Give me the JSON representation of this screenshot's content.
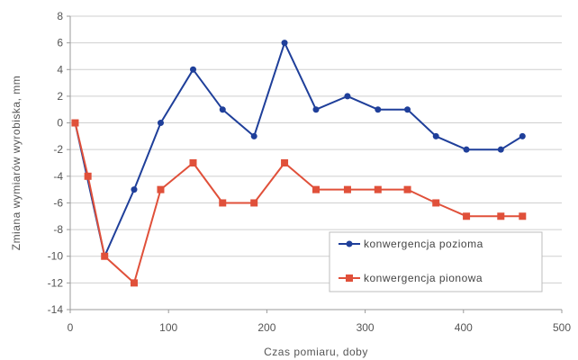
{
  "chart_data": {
    "type": "line",
    "title": "",
    "xlabel": "Czas pomiaru, doby",
    "ylabel": "Zmiana wymiarów wyrobiska, mm",
    "xlim": [
      0,
      500
    ],
    "ylim": [
      -14,
      8
    ],
    "xticks": [
      0,
      100,
      200,
      300,
      400,
      500
    ],
    "yticks": [
      -14,
      -12,
      -10,
      -8,
      -6,
      -4,
      -2,
      0,
      2,
      4,
      6,
      8
    ],
    "grid": true,
    "legend_position": "bottom-right",
    "series": [
      {
        "name": "konwergencja pozioma",
        "color": "#1f3f9a",
        "marker": "circle",
        "x": [
          5,
          35,
          65,
          92,
          125,
          155,
          187,
          218,
          250,
          282,
          313,
          343,
          372,
          403,
          438,
          460
        ],
        "y": [
          0,
          -10,
          -5,
          0,
          4,
          1,
          -1,
          6,
          1,
          2,
          1,
          1,
          -1,
          -2,
          -2,
          -1
        ]
      },
      {
        "name": "konwergencja pionowa",
        "color": "#e0503a",
        "marker": "square",
        "x": [
          5,
          18,
          35,
          65,
          92,
          125,
          155,
          187,
          218,
          250,
          282,
          313,
          343,
          372,
          403,
          438,
          460
        ],
        "y": [
          0,
          -4,
          -10,
          -12,
          -5,
          -3,
          -6,
          -6,
          -3,
          -5,
          -5,
          -5,
          -5,
          -6,
          -7,
          -7,
          -7
        ]
      }
    ]
  }
}
